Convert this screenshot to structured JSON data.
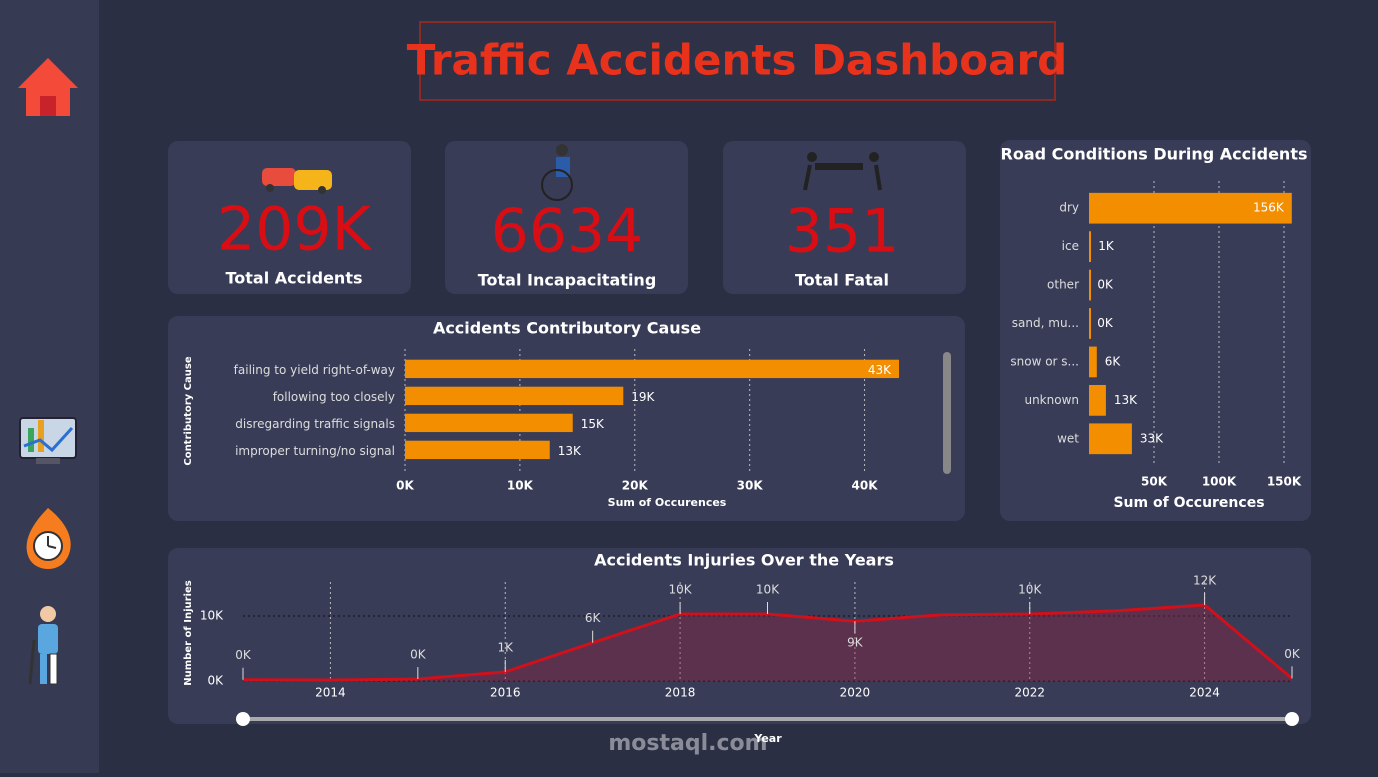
{
  "title": "Traffic Accidents Dashboard",
  "kpis": [
    {
      "value": "209K",
      "label": "Total Accidents"
    },
    {
      "value": "6634",
      "label": "Total Incapacitating"
    },
    {
      "value": "351",
      "label": "Total Fatal"
    }
  ],
  "watermark": "mostaql.com",
  "chart_data": [
    {
      "type": "hbar",
      "title": "Accidents Contributory Cause",
      "x_label": "Sum of Occurences",
      "y_label": "Contributory Cause",
      "categories": [
        "failing to yield right-of-way",
        "following too closely",
        "disregarding traffic signals",
        "improper turning/no signal"
      ],
      "values": [
        43000,
        19000,
        14600,
        12600
      ],
      "value_labels": [
        "43K",
        "19K",
        "15K",
        "13K"
      ],
      "color": "#f28e00",
      "xlim": [
        0,
        45000
      ],
      "xticks": [
        {
          "value": 0,
          "label": "0K"
        },
        {
          "value": 10000,
          "label": "10K"
        },
        {
          "value": 20000,
          "label": "20K"
        },
        {
          "value": 30000,
          "label": "30K"
        },
        {
          "value": 40000,
          "label": "40K"
        }
      ],
      "grid": true
    },
    {
      "type": "hbar",
      "title": "Road Conditions During Accidents",
      "x_label": "Sum of Occurences",
      "categories": [
        "dry",
        "ice",
        "other",
        "sand, mu...",
        "snow or s...",
        "unknown",
        "wet"
      ],
      "values": [
        156000,
        1000,
        300,
        200,
        6000,
        13000,
        33000
      ],
      "value_labels": [
        "156K",
        "1K",
        "0K",
        "0K",
        "6K",
        "13K",
        "33K"
      ],
      "color": "#f28e00",
      "xlim": [
        0,
        160000
      ],
      "xticks": [
        {
          "value": 50000,
          "label": "50K"
        },
        {
          "value": 100000,
          "label": "100K"
        },
        {
          "value": 150000,
          "label": "150K"
        }
      ],
      "grid": true
    },
    {
      "type": "line",
      "title": "Accidents Injuries Over the Years",
      "x_label": "Year",
      "y_label": "Number of Injuries",
      "x": [
        2013,
        2014,
        2015,
        2016,
        2017,
        2018,
        2019,
        2020,
        2021,
        2022,
        2023,
        2024,
        2025
      ],
      "values": [
        200,
        150,
        300,
        1400,
        5900,
        10300,
        10300,
        9200,
        10200,
        10300,
        10800,
        11700,
        400
      ],
      "value_labels": [
        "0K",
        null,
        "0K",
        "1K",
        "6K",
        "10K",
        "10K",
        "9K",
        null,
        "10K",
        null,
        "12K",
        "0K"
      ],
      "color": "#d0101a",
      "xlim": [
        2013,
        2025
      ],
      "xticks": [
        2014,
        2016,
        2018,
        2020,
        2022,
        2024
      ],
      "ylim": [
        0,
        14000
      ],
      "yticks": [
        {
          "value": 0,
          "label": "0K"
        },
        {
          "value": 10000,
          "label": "10K"
        }
      ],
      "grid": true
    }
  ]
}
